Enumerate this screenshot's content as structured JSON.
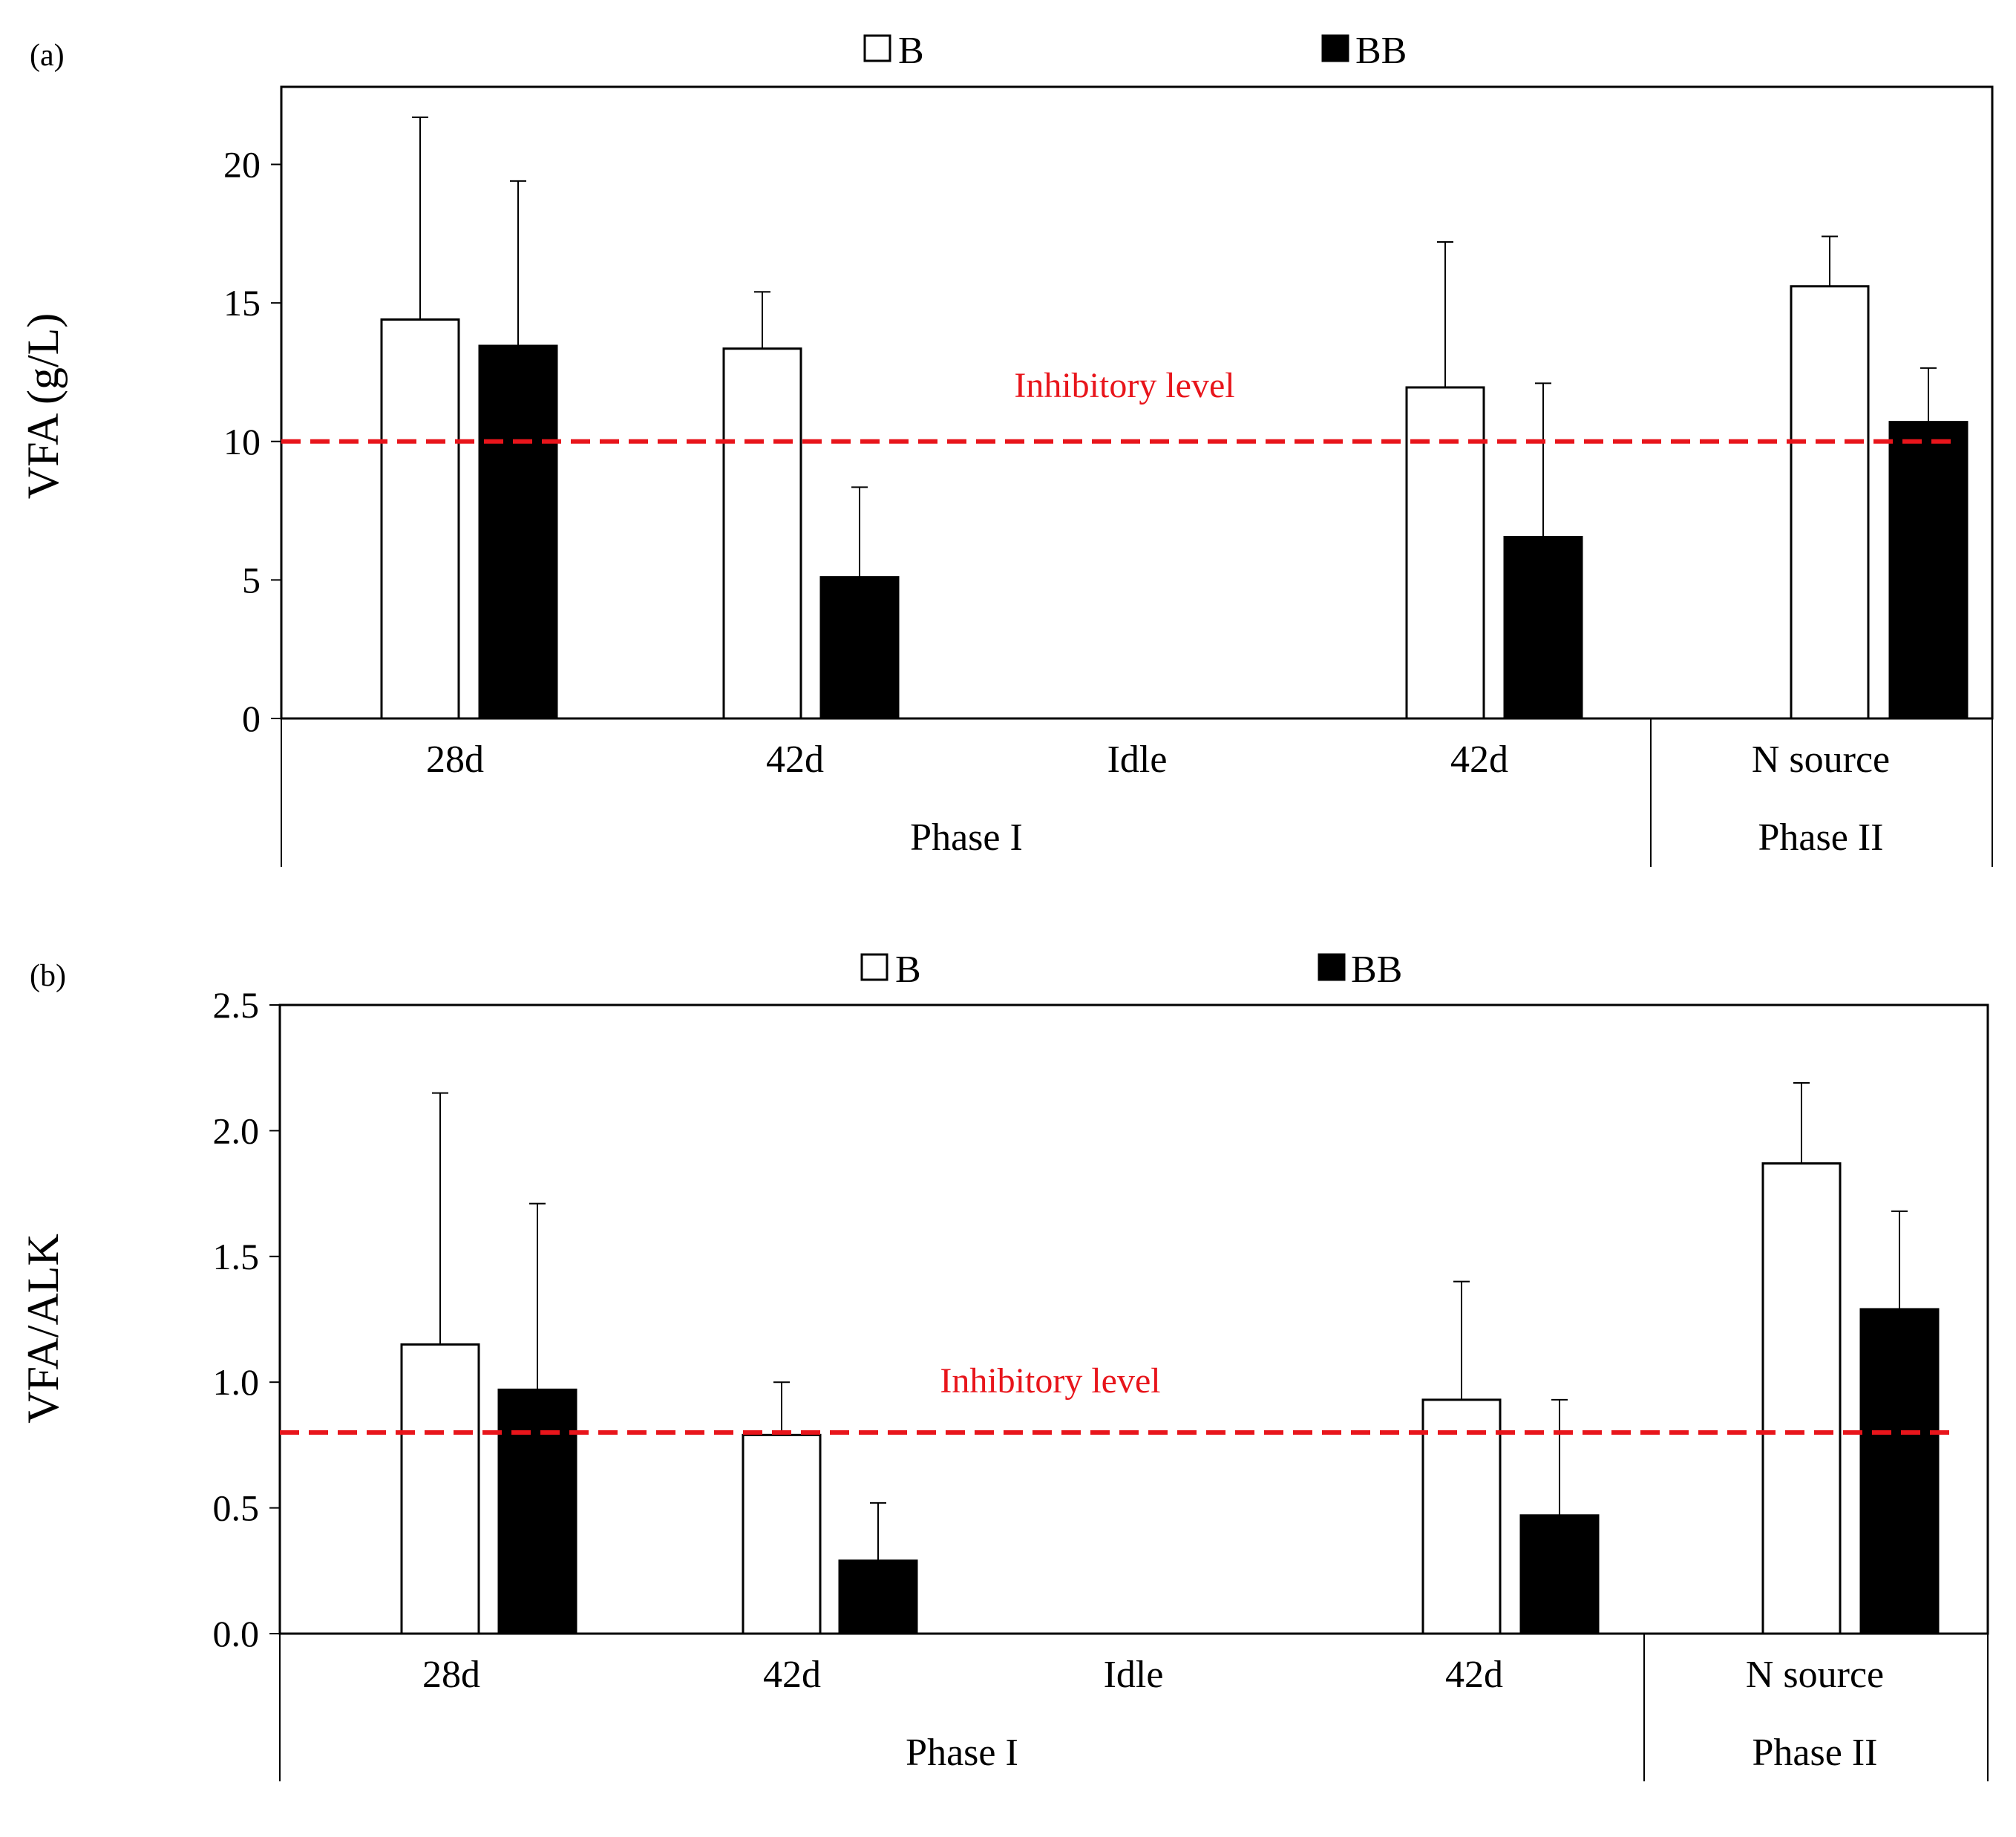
{
  "colors": {
    "bar_b_fill": "#ffffff",
    "bar_bb_fill": "#000000",
    "outline": "#000000",
    "inhibitory": "#e8151b"
  },
  "legend": {
    "b": "B",
    "bb": "BB"
  },
  "chart_data": [
    {
      "type": "bar",
      "panel_label": "(a)",
      "ylabel": "VFA (g/L)",
      "ylim": [
        0,
        22.8
      ],
      "yticks": [
        0,
        5,
        10,
        15,
        20
      ],
      "ytick_labels": [
        "0",
        "5",
        "10",
        "15",
        "20"
      ],
      "categories": [
        "28d",
        "42d",
        "Idle",
        "42d",
        "N source"
      ],
      "groups": [
        {
          "label": "Phase I",
          "span": [
            0,
            3
          ]
        },
        {
          "label": "Phase II",
          "span": [
            4,
            4
          ]
        }
      ],
      "series": [
        {
          "name": "B",
          "values": [
            14.4,
            13.35,
            null,
            11.95,
            15.6
          ],
          "errors": [
            7.3,
            2.05,
            null,
            5.25,
            1.8
          ]
        },
        {
          "name": "BB",
          "values": [
            13.45,
            5.1,
            null,
            6.55,
            10.7
          ],
          "errors": [
            5.95,
            3.25,
            null,
            5.55,
            1.95
          ]
        }
      ],
      "reference_line": {
        "value": 10,
        "label": "Inhibitory level"
      }
    },
    {
      "type": "bar",
      "panel_label": "(b)",
      "ylabel": "VFA/ALK",
      "ylim": [
        0,
        2.5
      ],
      "yticks": [
        0,
        0.5,
        1,
        1.5,
        2,
        2.5
      ],
      "ytick_labels": [
        "0.0",
        "0.5",
        "1.0",
        "1.5",
        "2.0",
        "2.5"
      ],
      "categories": [
        "28d",
        "42d",
        "Idle",
        "42d",
        "N source"
      ],
      "groups": [
        {
          "label": "Phase I",
          "span": [
            0,
            3
          ]
        },
        {
          "label": "Phase II",
          "span": [
            4,
            4
          ]
        }
      ],
      "series": [
        {
          "name": "B",
          "values": [
            1.15,
            0.79,
            null,
            0.93,
            1.87
          ],
          "errors": [
            1.0,
            0.21,
            null,
            0.47,
            0.32
          ]
        },
        {
          "name": "BB",
          "values": [
            0.97,
            0.29,
            null,
            0.47,
            1.29
          ],
          "errors": [
            0.74,
            0.23,
            null,
            0.46,
            0.39
          ]
        }
      ],
      "reference_line": {
        "value": 0.8,
        "label": "Inhibitory level"
      }
    }
  ]
}
